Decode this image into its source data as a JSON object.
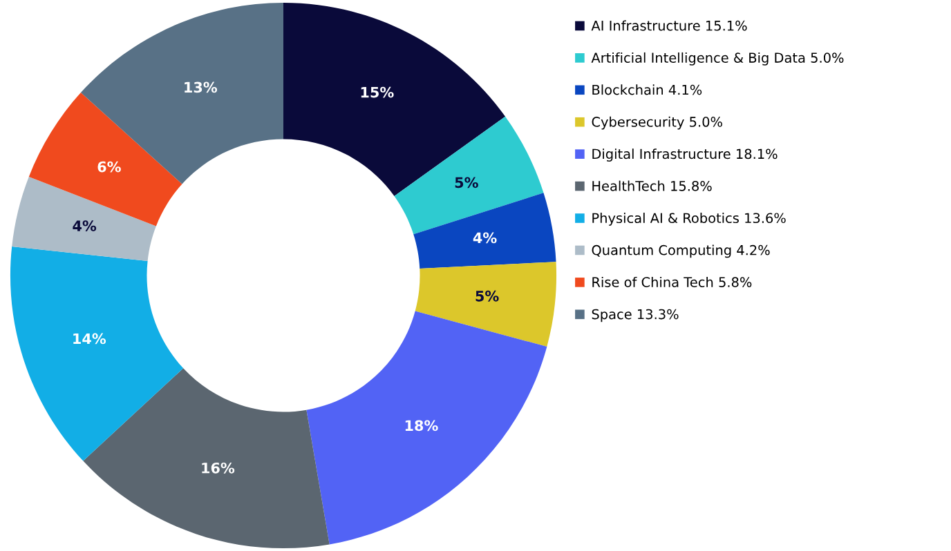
{
  "chart_data": {
    "type": "donut",
    "categories": [
      "AI Infrastructure 15.1%",
      "Artificial Intelligence & Big Data 5.0%",
      "Blockchain 4.1%",
      "Cybersecurity 5.0%",
      "Digital Infrastructure 18.1%",
      "HealthTech 15.8%",
      "Physical AI & Robotics 13.6%",
      "Quantum Computing 4.2%",
      "Rise of China Tech 5.8%",
      "Space 13.3%"
    ],
    "values": [
      15.1,
      5.0,
      4.1,
      5.0,
      18.1,
      15.8,
      13.6,
      4.2,
      5.8,
      13.3
    ],
    "value_labels": [
      "15%",
      "5%",
      "4%",
      "5%",
      "18%",
      "16%",
      "14%",
      "4%",
      "6%",
      "13%"
    ],
    "colors": [
      "#0a0a3a",
      "#2ecbd0",
      "#0a46c0",
      "#dcc72b",
      "#5263f5",
      "#5b6670",
      "#12aee6",
      "#adbcc8",
      "#f04a1e",
      "#587186"
    ],
    "legend": "right"
  }
}
